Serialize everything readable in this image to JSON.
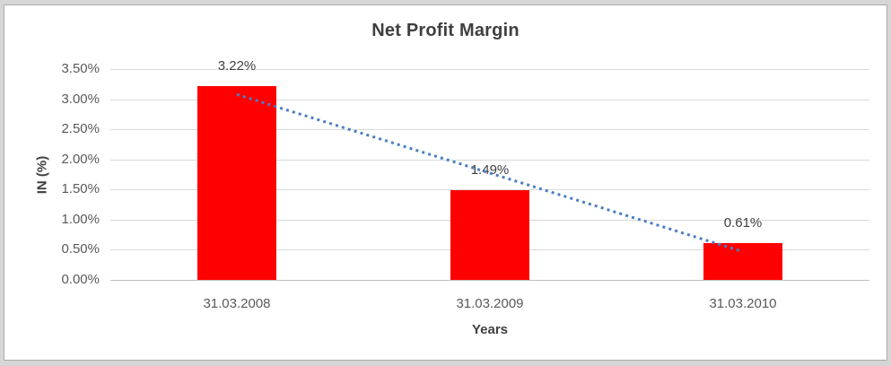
{
  "chart_data": {
    "type": "bar",
    "title": "Net Profit Margin",
    "xlabel": "Years",
    "ylabel": "IN (%)",
    "categories": [
      "31.03.2008",
      "31.03.2009",
      "31.03.2010"
    ],
    "values": [
      3.22,
      1.49,
      0.61
    ],
    "data_labels": [
      "3.22%",
      "1.49%",
      "0.61%"
    ],
    "y_ticks": [
      "0.00%",
      "0.50%",
      "1.00%",
      "1.50%",
      "2.00%",
      "2.50%",
      "3.00%",
      "3.50%"
    ],
    "y_tick_values": [
      0,
      0.5,
      1,
      1.5,
      2,
      2.5,
      3,
      3.5
    ],
    "ylim": [
      0,
      3.5
    ],
    "grid": true,
    "legend": "none",
    "trendline": {
      "type": "linear",
      "style": "dotted"
    },
    "colors": {
      "bar": "#ff0000",
      "trendline": "#4a7fc1",
      "gridline": "#d9d9d9",
      "axis_line": "#bfbfbf",
      "title_text": "#3f3f3f",
      "tick_text": "#595959",
      "label_text": "#404040",
      "frame_bg": "#d6d6d6",
      "panel_bg": "#ffffff",
      "panel_border": "#ababab"
    }
  }
}
